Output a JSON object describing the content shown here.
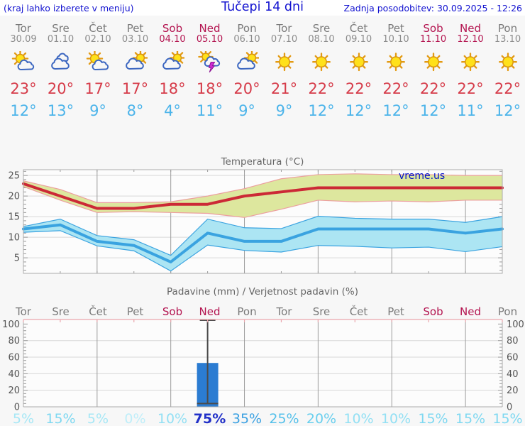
{
  "header": {
    "left_note": "(kraj lahko izberete v meniju)",
    "title": "Tučepi 14 dni",
    "updated": "Zadnja posodobitev: 30.09.2025 - 12:26"
  },
  "colors": {
    "header_blue": "#1212d0",
    "weekday_gray": "#7a7a7a",
    "date_gray": "#8c8c8c",
    "weekend_crimson": "#b3134f",
    "tmax_red": "#d63c4a",
    "tmin_blue": "#4cb4ea",
    "axis_label_gray": "#555555",
    "title_gray": "#666666",
    "frame_gray": "#ababab",
    "grid_major_vertical": "#9c9c9c",
    "grid_horizontal": "#d8d8d8",
    "precip_bar_blue": "#2b7cd2",
    "whisker_gray": "#4a4a4a",
    "precip_top_line_pink": "#eaa6ad",
    "watermark_blue": "#0011cc"
  },
  "days": [
    {
      "name": "Tor",
      "date": "30.09",
      "weekend": false,
      "icon": "sun-small-cloud",
      "tmax_label": "23°",
      "tmin_label": "12°",
      "prob": "5%",
      "prob_color": "#a6e7f6",
      "emph": false
    },
    {
      "name": "Sre",
      "date": "01.10",
      "weekend": false,
      "icon": "clouds",
      "tmax_label": "20°",
      "tmin_label": "13°",
      "prob": "15%",
      "prob_color": "#7ed8f1",
      "emph": false
    },
    {
      "name": "Čet",
      "date": "02.10",
      "weekend": false,
      "icon": "sun-small-cloud",
      "tmax_label": "17°",
      "tmin_label": "9°",
      "prob": "5%",
      "prob_color": "#a6e7f6",
      "emph": false
    },
    {
      "name": "Pet",
      "date": "03.10",
      "weekend": false,
      "icon": "cloud-sun",
      "tmax_label": "17°",
      "tmin_label": "8°",
      "prob": "0%",
      "prob_color": "#bfeef9",
      "emph": false
    },
    {
      "name": "Sob",
      "date": "04.10",
      "weekend": true,
      "icon": "cloud-sun",
      "tmax_label": "18°",
      "tmin_label": "4°",
      "prob": "10%",
      "prob_color": "#93e0f4",
      "emph": false
    },
    {
      "name": "Ned",
      "date": "05.10",
      "weekend": true,
      "icon": "thunder",
      "tmax_label": "18°",
      "tmin_label": "11°",
      "prob": "75%",
      "prob_color": "#2130c8",
      "emph": true
    },
    {
      "name": "Pon",
      "date": "06.10",
      "weekend": false,
      "icon": "cloud-sun",
      "tmax_label": "20°",
      "tmin_label": "9°",
      "prob": "35%",
      "prob_color": "#3ba1e2",
      "emph": false
    },
    {
      "name": "Tor",
      "date": "07.10",
      "weekend": false,
      "icon": "sun",
      "tmax_label": "21°",
      "tmin_label": "9°",
      "prob": "25%",
      "prob_color": "#54c0ea",
      "emph": false
    },
    {
      "name": "Sre",
      "date": "08.10",
      "weekend": false,
      "icon": "sun",
      "tmax_label": "22°",
      "tmin_label": "12°",
      "prob": "20%",
      "prob_color": "#69cfee",
      "emph": false
    },
    {
      "name": "Čet",
      "date": "09.10",
      "weekend": false,
      "icon": "sun",
      "tmax_label": "22°",
      "tmin_label": "12°",
      "prob": "10%",
      "prob_color": "#93e0f4",
      "emph": false
    },
    {
      "name": "Pet",
      "date": "10.10",
      "weekend": false,
      "icon": "sun",
      "tmax_label": "22°",
      "tmin_label": "12°",
      "prob": "10%",
      "prob_color": "#93e0f4",
      "emph": false
    },
    {
      "name": "Sob",
      "date": "11.10",
      "weekend": true,
      "icon": "sun",
      "tmax_label": "22°",
      "tmin_label": "12°",
      "prob": "15%",
      "prob_color": "#7ed8f1",
      "emph": false
    },
    {
      "name": "Ned",
      "date": "12.10",
      "weekend": true,
      "icon": "sun",
      "tmax_label": "22°",
      "tmin_label": "11°",
      "prob": "15%",
      "prob_color": "#7ed8f1",
      "emph": false
    },
    {
      "name": "Pon",
      "date": "13.10",
      "weekend": false,
      "icon": "sun",
      "tmax_label": "22°",
      "tmin_label": "12°",
      "prob": "15%",
      "prob_color": "#7ed8f1",
      "emph": false
    }
  ],
  "chart_data": [
    {
      "type": "line",
      "title": "Temperatura (°C)",
      "watermark": "vreme.us",
      "x_categories": [
        "Tor 30.09",
        "Sre 01.10",
        "Čet 02.10",
        "Pet 03.10",
        "Sob 04.10",
        "Ned 05.10",
        "Pon 06.10",
        "Tor 07.10",
        "Sre 08.10",
        "Čet 09.10",
        "Pet 10.10",
        "Sob 11.10",
        "Ned 12.10",
        "Pon 13.10"
      ],
      "ylim": [
        1.2,
        26.4
      ],
      "yticks": [
        5,
        10,
        15,
        20,
        25
      ],
      "grid": "vertical lines every 2nd day, horizontal at yticks",
      "series": [
        {
          "name": "max_temp_c",
          "color": "#cc2936",
          "band_fill": "#dde79e",
          "band_edge": "#ec9f9f",
          "values": [
            23,
            20,
            17,
            17,
            18,
            18,
            20,
            21,
            22,
            22,
            22,
            22,
            22,
            22
          ],
          "band_upper": [
            23.7,
            21.6,
            18.4,
            18.4,
            18.6,
            20,
            21.8,
            24.2,
            25.2,
            25.4,
            25.2,
            25.2,
            25,
            25
          ],
          "band_lower": [
            22.3,
            19,
            16,
            16.2,
            16,
            15.8,
            14.8,
            16.8,
            19,
            18.6,
            18.8,
            18.6,
            19,
            19
          ]
        },
        {
          "name": "min_temp_c",
          "color": "#3aa3e0",
          "band_fill": "#ace5f3",
          "band_edge": "#3aa3e0",
          "values": [
            12,
            13,
            9,
            8,
            4,
            11,
            9,
            9,
            12,
            12,
            12,
            12,
            11,
            12
          ],
          "band_upper": [
            12.6,
            14.4,
            10.4,
            9.4,
            5.6,
            14.4,
            12.3,
            12.1,
            15.1,
            14.6,
            14.4,
            14.4,
            13.6,
            15
          ],
          "band_lower": [
            11.2,
            11.6,
            7.9,
            6.7,
            1.8,
            8.1,
            6.8,
            6.4,
            8,
            7.8,
            7.4,
            7.6,
            6.5,
            7.7
          ]
        }
      ]
    },
    {
      "type": "bar",
      "title": "Padavine (mm) / Verjetnost padavin (%)",
      "x_categories": [
        "Tor",
        "Sre",
        "Čet",
        "Pet",
        "Sob",
        "Ned",
        "Pon",
        "Tor",
        "Sre",
        "Čet",
        "Pet",
        "Sob",
        "Ned",
        "Pon"
      ],
      "ylim": [
        0,
        105.5
      ],
      "yticks": [
        0,
        20,
        40,
        60,
        80,
        100
      ],
      "bars": [
        {
          "day": "Ned 05.10",
          "day_index": 5,
          "precip_mm": 53,
          "whisker_min_mm": 4,
          "whisker_max_mm": 105
        }
      ],
      "probabilities_pct": [
        5,
        15,
        5,
        0,
        10,
        75,
        35,
        25,
        20,
        10,
        10,
        15,
        15,
        15
      ]
    }
  ]
}
